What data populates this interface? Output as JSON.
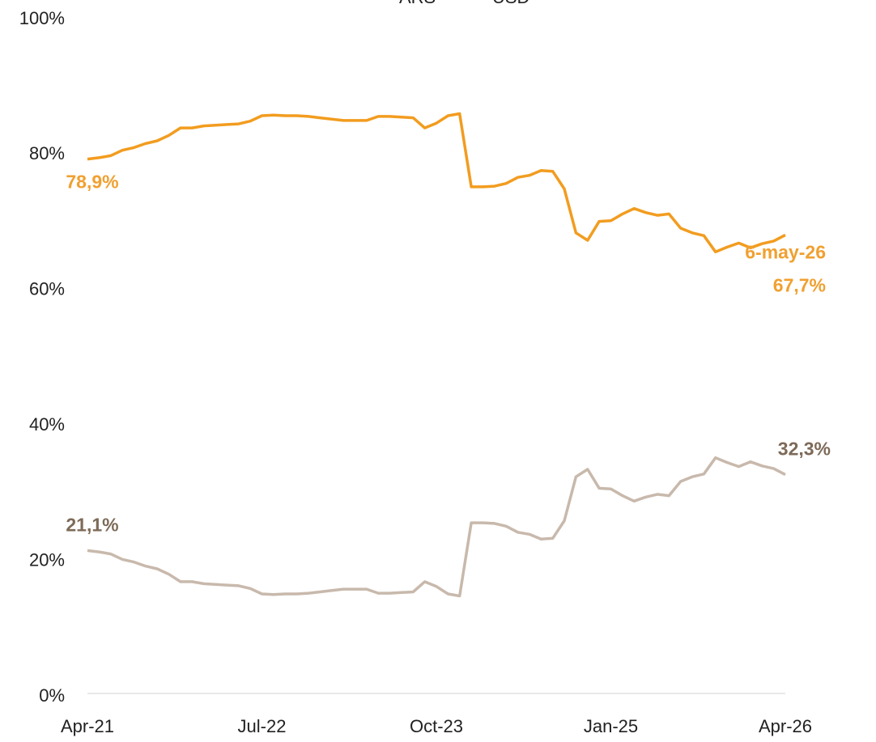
{
  "chart_data": {
    "type": "line",
    "x": [
      0,
      1,
      2,
      3,
      4,
      5,
      6,
      7,
      8,
      9,
      10,
      11,
      12,
      13,
      14,
      15,
      16,
      17,
      18,
      19,
      20,
      21,
      22,
      23,
      24,
      25,
      26,
      27,
      28,
      29,
      30,
      31,
      32,
      33,
      34,
      35,
      36,
      37,
      38,
      39,
      40,
      41,
      42,
      43,
      44,
      45,
      46,
      47,
      48,
      49,
      50,
      51,
      52,
      53,
      54,
      55,
      56,
      57,
      58,
      59,
      60
    ],
    "series": [
      {
        "name": "ARS",
        "color": "#f29c1f",
        "values": [
          78.9,
          79.1,
          79.4,
          80.2,
          80.6,
          81.2,
          81.6,
          82.4,
          83.5,
          83.5,
          83.8,
          83.9,
          84.0,
          84.1,
          84.5,
          85.3,
          85.4,
          85.3,
          85.3,
          85.2,
          85.0,
          84.8,
          84.6,
          84.6,
          84.6,
          85.2,
          85.2,
          85.1,
          85.0,
          83.5,
          84.2,
          85.3,
          85.6,
          74.8,
          74.8,
          74.9,
          75.3,
          76.2,
          76.5,
          77.2,
          77.1,
          74.5,
          68.0,
          66.9,
          69.7,
          69.8,
          70.8,
          71.6,
          71.0,
          70.6,
          70.8,
          68.7,
          68.0,
          67.6,
          65.2,
          65.9,
          66.5,
          65.8,
          66.4,
          66.8,
          67.7
        ]
      },
      {
        "name": "USD",
        "color": "#c8b9ac",
        "values": [
          21.1,
          20.9,
          20.6,
          19.8,
          19.4,
          18.8,
          18.4,
          17.6,
          16.5,
          16.5,
          16.2,
          16.1,
          16.0,
          15.9,
          15.5,
          14.7,
          14.6,
          14.7,
          14.7,
          14.8,
          15.0,
          15.2,
          15.4,
          15.4,
          15.4,
          14.8,
          14.8,
          14.9,
          15.0,
          16.5,
          15.8,
          14.7,
          14.4,
          25.2,
          25.2,
          25.1,
          24.7,
          23.8,
          23.5,
          22.8,
          22.9,
          25.5,
          32.0,
          33.1,
          30.3,
          30.2,
          29.2,
          28.4,
          29.0,
          29.4,
          29.2,
          31.3,
          32.0,
          32.4,
          34.8,
          34.1,
          33.5,
          34.2,
          33.6,
          33.2,
          32.3
        ]
      }
    ],
    "annotations": [
      {
        "text": "78,9%",
        "series": 0,
        "point": 0
      },
      {
        "text": "6-may-26",
        "series": 0,
        "point": 60
      },
      {
        "text": "67,7%",
        "series": 0,
        "point": 60
      },
      {
        "text": "21,1%",
        "series": 1,
        "point": 0
      },
      {
        "text": "32,3%",
        "series": 1,
        "point": 60
      }
    ],
    "annotation_colors": [
      "#f0a030",
      "#7d6a58"
    ],
    "xlim": [
      0,
      60
    ],
    "xticks": [
      {
        "value": 0,
        "label": "Apr-21"
      },
      {
        "value": 15,
        "label": "Jul-22"
      },
      {
        "value": 30,
        "label": "Oct-23"
      },
      {
        "value": 45,
        "label": "Jan-25"
      },
      {
        "value": 60,
        "label": "Apr-26"
      }
    ],
    "ylim": [
      0,
      100
    ],
    "yticks": [
      {
        "value": 0,
        "label": "0%"
      },
      {
        "value": 20,
        "label": "20%"
      },
      {
        "value": 40,
        "label": "40%"
      },
      {
        "value": 60,
        "label": "60%"
      },
      {
        "value": 80,
        "label": "80%"
      },
      {
        "value": 100,
        "label": "100%"
      }
    ],
    "grid": false,
    "legend": "top"
  }
}
